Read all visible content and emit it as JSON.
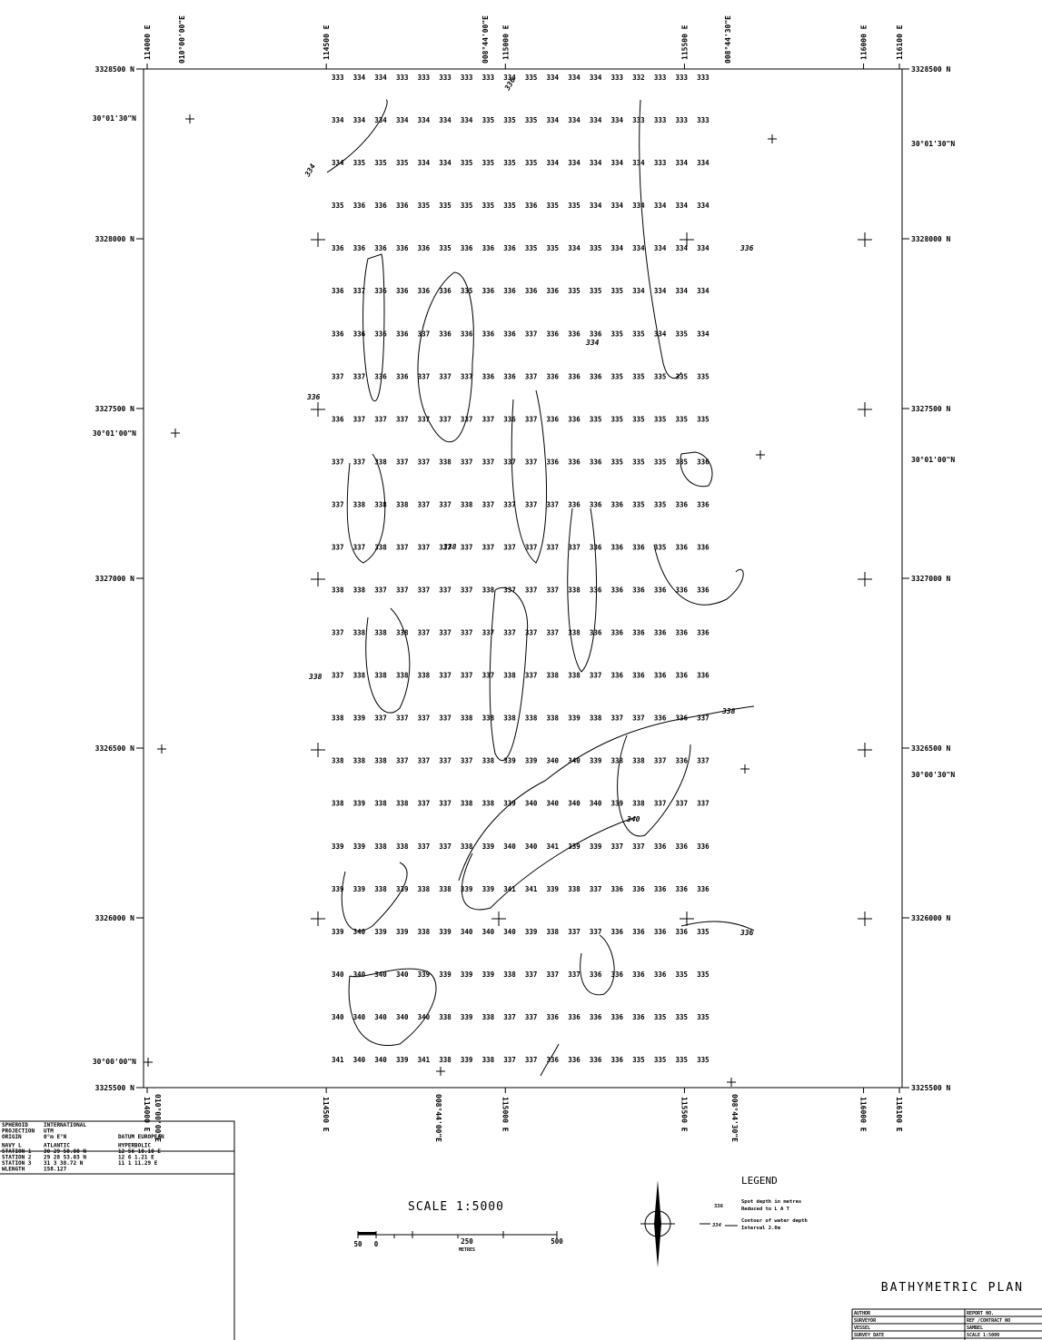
{
  "map": {
    "eastings": [
      {
        "value": 114000,
        "label": "114000 E"
      },
      {
        "value": 114500,
        "label": "114500 E"
      },
      {
        "value": 115000,
        "label": "115000 E"
      },
      {
        "value": 115500,
        "label": "115500 E"
      },
      {
        "value": 116000,
        "label": "116000 E"
      },
      {
        "value": 116100,
        "label": "116100 E"
      }
    ],
    "northings": [
      {
        "value": 3328500,
        "label": "3328500 N"
      },
      {
        "value": 3328000,
        "label": "3328000 N"
      },
      {
        "value": 3327500,
        "label": "3327500 N"
      },
      {
        "value": 3327000,
        "label": "3327000 N"
      },
      {
        "value": 3326500,
        "label": "3326500 N"
      },
      {
        "value": 3326000,
        "label": "3326000 N"
      },
      {
        "value": 3325500,
        "label": "3325500 N"
      }
    ],
    "latitudes_left": [
      "30°01'30\"N",
      "30°01'00\"N",
      "30°00'00\"N"
    ],
    "latitudes_right": [
      "30°01'30\"N",
      "30°01'00\"N",
      "30°00'30\"N"
    ],
    "longitudes_top": [
      "010°00'00\"E",
      "008°44'00\"E",
      "008°44'30\"E"
    ],
    "longitudes_bottom": [
      "010°00'00\"E",
      "008°44'00\"E",
      "008°44'30\"E"
    ],
    "spot_columns": [
      {
        "easting": 114530,
        "depths": [
          333,
          334,
          334,
          335,
          336,
          336,
          336,
          337,
          336,
          337,
          337,
          337,
          338,
          337,
          337,
          338,
          338,
          338,
          339,
          339,
          339,
          340,
          340,
          341
        ]
      },
      {
        "easting": 114590,
        "depths": [
          334,
          334,
          335,
          336,
          336,
          337,
          336,
          337,
          337,
          337,
          338,
          337,
          338,
          338,
          338,
          339,
          338,
          339,
          339,
          339,
          340,
          340,
          340,
          340
        ]
      },
      {
        "easting": 114650,
        "depths": [
          334,
          334,
          335,
          336,
          336,
          336,
          336,
          336,
          337,
          338,
          338,
          338,
          337,
          338,
          338,
          337,
          338,
          338,
          338,
          338,
          339,
          340,
          340,
          340
        ]
      },
      {
        "easting": 114710,
        "depths": [
          333,
          334,
          335,
          336,
          336,
          336,
          336,
          336,
          337,
          337,
          338,
          337,
          337,
          338,
          338,
          337,
          337,
          338,
          338,
          339,
          339,
          340,
          340,
          339
        ]
      },
      {
        "easting": 114770,
        "depths": [
          333,
          334,
          334,
          335,
          336,
          336,
          337,
          337,
          337,
          337,
          337,
          337,
          337,
          337,
          338,
          337,
          337,
          337,
          337,
          338,
          338,
          339,
          340,
          341
        ]
      },
      {
        "easting": 114830,
        "depths": [
          333,
          334,
          334,
          335,
          335,
          336,
          336,
          337,
          337,
          338,
          337,
          337,
          337,
          337,
          337,
          337,
          337,
          337,
          337,
          338,
          339,
          339,
          338,
          338
        ]
      },
      {
        "easting": 114890,
        "depths": [
          333,
          334,
          335,
          335,
          336,
          335,
          336,
          337,
          337,
          337,
          338,
          337,
          337,
          337,
          337,
          338,
          337,
          338,
          338,
          339,
          340,
          339,
          339,
          339
        ]
      },
      {
        "easting": 114950,
        "depths": [
          333,
          335,
          335,
          335,
          336,
          336,
          336,
          336,
          337,
          337,
          337,
          337,
          338,
          337,
          337,
          338,
          338,
          338,
          339,
          339,
          340,
          339,
          338,
          338
        ]
      },
      {
        "easting": 115010,
        "depths": [
          334,
          335,
          335,
          335,
          336,
          336,
          336,
          336,
          336,
          337,
          337,
          337,
          337,
          337,
          338,
          338,
          339,
          339,
          340,
          341,
          340,
          338,
          337,
          337
        ]
      },
      {
        "easting": 115070,
        "depths": [
          335,
          335,
          335,
          336,
          335,
          336,
          337,
          337,
          337,
          337,
          337,
          337,
          337,
          337,
          337,
          338,
          339,
          340,
          340,
          341,
          339,
          337,
          337,
          337
        ]
      },
      {
        "easting": 115130,
        "depths": [
          334,
          334,
          334,
          335,
          335,
          336,
          336,
          336,
          336,
          336,
          337,
          337,
          337,
          337,
          338,
          338,
          340,
          340,
          341,
          339,
          338,
          337,
          336,
          336
        ]
      },
      {
        "easting": 115190,
        "depths": [
          334,
          334,
          334,
          335,
          334,
          335,
          336,
          336,
          336,
          336,
          336,
          337,
          338,
          338,
          338,
          339,
          340,
          340,
          339,
          338,
          337,
          337,
          336,
          336
        ]
      },
      {
        "easting": 115250,
        "depths": [
          334,
          334,
          334,
          334,
          335,
          335,
          336,
          336,
          335,
          336,
          336,
          336,
          336,
          336,
          337,
          338,
          339,
          340,
          339,
          337,
          337,
          336,
          336,
          336
        ]
      },
      {
        "easting": 115310,
        "depths": [
          333,
          334,
          334,
          334,
          334,
          335,
          335,
          335,
          335,
          335,
          336,
          336,
          336,
          336,
          336,
          337,
          338,
          339,
          337,
          336,
          336,
          336,
          336,
          336
        ]
      },
      {
        "easting": 115370,
        "depths": [
          332,
          333,
          334,
          334,
          334,
          334,
          335,
          335,
          335,
          335,
          335,
          336,
          336,
          336,
          336,
          337,
          338,
          338,
          337,
          336,
          336,
          336,
          336,
          335
        ]
      },
      {
        "easting": 115430,
        "depths": [
          333,
          333,
          333,
          334,
          334,
          334,
          334,
          335,
          335,
          335,
          335,
          335,
          336,
          336,
          336,
          336,
          337,
          337,
          336,
          336,
          336,
          336,
          335,
          335
        ]
      },
      {
        "easting": 115490,
        "depths": [
          333,
          333,
          334,
          334,
          334,
          334,
          335,
          335,
          335,
          335,
          336,
          336,
          336,
          336,
          336,
          336,
          336,
          337,
          336,
          336,
          336,
          335,
          335,
          335
        ]
      },
      {
        "easting": 115550,
        "depths": [
          333,
          333,
          334,
          334,
          334,
          334,
          334,
          335,
          335,
          336,
          336,
          336,
          336,
          336,
          336,
          337,
          337,
          337,
          336,
          336,
          335,
          335,
          335,
          335
        ]
      }
    ],
    "contour_labels": [
      "334",
      "336",
      "338",
      "336",
      "338",
      "340",
      "336",
      "338",
      "334",
      "336"
    ]
  },
  "geodesy": {
    "rows": [
      [
        "SPHEROID",
        "INTERNATIONAL",
        ""
      ],
      [
        "PROJECTION",
        "UTM",
        ""
      ],
      [
        "ORIGIN",
        "0°m E°N",
        "DATUM EUROPEAN"
      ],
      [
        "NAVY L",
        "ATLANTIC",
        "HYPERBOLIC"
      ],
      [
        "STATION 1",
        "30 29 50.00 N",
        "12 56 10.10 E"
      ],
      [
        "STATION 2",
        "29 28 53.03 N",
        "12 6 1.21 E"
      ],
      [
        "STATION 3",
        "31 3 38.72 N",
        "11 1 11.29 E"
      ],
      [
        "WLENGTH",
        "158.127",
        ""
      ]
    ]
  },
  "scale": {
    "title": "SCALE 1:5000",
    "ticks": [
      "50",
      "0",
      "250",
      "500"
    ],
    "unit": "METRES"
  },
  "legend": {
    "title": "LEGEND",
    "spot_sample": "336",
    "spot_text": [
      "Spot depth in metres",
      "Reduced to L A T"
    ],
    "contour_sample": "334",
    "contour_text": [
      "Contour of water depth",
      "Interval 2.0m"
    ]
  },
  "title_block": {
    "title": "BATHYMETRIC PLAN",
    "rows": [
      [
        "AUTHOR",
        "REPORT NO."
      ],
      [
        "SURVEYOR",
        "REF /CONTRACT NO"
      ],
      [
        "VESSEL",
        "SAMBEL"
      ],
      [
        "SURVEY DATE",
        "SCALE 1:5000"
      ]
    ]
  }
}
